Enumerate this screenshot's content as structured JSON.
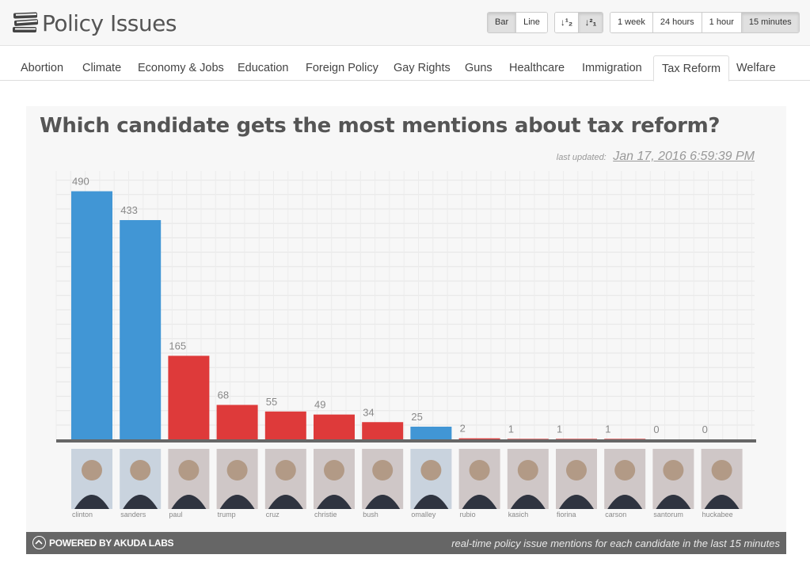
{
  "header": {
    "app_title": "Policy Issues",
    "view_buttons": [
      {
        "label": "Bar",
        "active": true
      },
      {
        "label": "Line",
        "active": false
      }
    ],
    "sort_buttons": [
      {
        "icon": "sort-ascending-icon",
        "glyph": "↓¹₂",
        "active": false
      },
      {
        "icon": "sort-descending-icon",
        "glyph": "↓²₁",
        "active": true
      }
    ],
    "time_buttons": [
      {
        "label": "1 week",
        "active": false
      },
      {
        "label": "24 hours",
        "active": false
      },
      {
        "label": "1 hour",
        "active": false
      },
      {
        "label": "15 minutes",
        "active": true
      }
    ]
  },
  "tabs": [
    {
      "label": "Abortion",
      "active": false
    },
    {
      "label": "Climate",
      "active": false
    },
    {
      "label": "Economy & Jobs",
      "active": false
    },
    {
      "label": "Education",
      "active": false
    },
    {
      "label": "Foreign Policy",
      "active": false
    },
    {
      "label": "Gay Rights",
      "active": false
    },
    {
      "label": "Guns",
      "active": false
    },
    {
      "label": "Healthcare",
      "active": false
    },
    {
      "label": "Immigration",
      "active": false
    },
    {
      "label": "Tax Reform",
      "active": true
    },
    {
      "label": "Welfare",
      "active": false
    }
  ],
  "panel": {
    "last_updated_label": "last updated:",
    "last_updated_value": "Jan 17, 2016 6:59:39 PM"
  },
  "footer": {
    "powered_by": "POWERED BY AKUDA LABS",
    "caption": "real-time policy issue mentions for each candidate in the last 15 minutes"
  },
  "colors": {
    "democrat": "#4196d5",
    "republican": "#de3a3a",
    "baseline": "#666666"
  },
  "chart_data": {
    "type": "bar",
    "title": "Which candidate gets the most mentions about tax reform?",
    "categories": [
      "clinton",
      "sanders",
      "paul",
      "trump",
      "cruz",
      "christie",
      "bush",
      "omalley",
      "rubio",
      "kasich",
      "fiorina",
      "carson",
      "santorum",
      "huckabee"
    ],
    "values": [
      490,
      433,
      165,
      68,
      55,
      49,
      34,
      25,
      2,
      1,
      1,
      1,
      0,
      0
    ],
    "party": [
      "democrat",
      "democrat",
      "republican",
      "republican",
      "republican",
      "republican",
      "republican",
      "democrat",
      "republican",
      "republican",
      "republican",
      "republican",
      "republican",
      "republican"
    ],
    "ylim": [
      0,
      530
    ],
    "grid": true,
    "legend": "none"
  }
}
